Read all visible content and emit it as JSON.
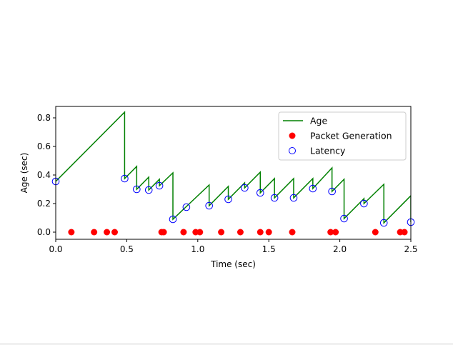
{
  "chart_data": {
    "type": "line",
    "title": "",
    "xlabel": "Time (sec)",
    "ylabel": "Age (sec)",
    "xlim": [
      0,
      2.5
    ],
    "ylim": [
      -0.05,
      0.88
    ],
    "xticks": [
      0.0,
      0.5,
      1.0,
      1.5,
      2.0,
      2.5
    ],
    "xtick_labels": [
      "0.0",
      "0.5",
      "1.0",
      "1.5",
      "2.0",
      "2.5"
    ],
    "yticks": [
      0.0,
      0.2,
      0.4,
      0.6,
      0.8
    ],
    "ytick_labels": [
      "0.0",
      "0.2",
      "0.4",
      "0.6",
      "0.8"
    ],
    "grid": false,
    "legend_position": "top-right",
    "series": [
      {
        "name": "Age",
        "kind": "line",
        "color": "#008000",
        "x": [
          0.0,
          0.485,
          0.485,
          0.57,
          0.57,
          0.655,
          0.655,
          0.73,
          0.73,
          0.825,
          0.825,
          1.08,
          1.08,
          1.215,
          1.215,
          1.33,
          1.33,
          1.44,
          1.44,
          1.54,
          1.54,
          1.675,
          1.675,
          1.81,
          1.81,
          1.945,
          1.945,
          2.03,
          2.03,
          2.17,
          2.17,
          2.31,
          2.31,
          2.5,
          2.5
        ],
        "y": [
          0.355,
          0.84,
          0.375,
          0.46,
          0.3,
          0.385,
          0.295,
          0.37,
          0.325,
          0.415,
          0.09,
          0.33,
          0.185,
          0.32,
          0.23,
          0.345,
          0.31,
          0.42,
          0.275,
          0.375,
          0.24,
          0.375,
          0.24,
          0.375,
          0.305,
          0.45,
          0.285,
          0.37,
          0.095,
          0.235,
          0.2,
          0.335,
          0.065,
          0.255,
          0.07
        ]
      },
      {
        "name": "Packet Generation",
        "kind": "scatter",
        "color": "#ff0000",
        "x": [
          0.11,
          0.27,
          0.36,
          0.415,
          0.745,
          0.76,
          0.9,
          0.985,
          1.015,
          1.165,
          1.3,
          1.44,
          1.5,
          1.665,
          1.935,
          1.97,
          2.25,
          2.425,
          2.455
        ],
        "y": [
          0,
          0,
          0,
          0,
          0,
          0,
          0,
          0,
          0,
          0,
          0,
          0,
          0,
          0,
          0,
          0,
          0,
          0,
          0
        ]
      },
      {
        "name": "Latency",
        "kind": "scatter-open",
        "color": "#0000ff",
        "x": [
          0.0,
          0.485,
          0.57,
          0.655,
          0.73,
          0.825,
          0.92,
          1.08,
          1.215,
          1.33,
          1.44,
          1.54,
          1.675,
          1.81,
          1.945,
          2.03,
          2.17,
          2.31,
          2.5
        ],
        "y": [
          0.355,
          0.375,
          0.3,
          0.295,
          0.325,
          0.09,
          0.175,
          0.185,
          0.23,
          0.31,
          0.275,
          0.24,
          0.24,
          0.305,
          0.285,
          0.095,
          0.2,
          0.065,
          0.07
        ]
      }
    ]
  }
}
